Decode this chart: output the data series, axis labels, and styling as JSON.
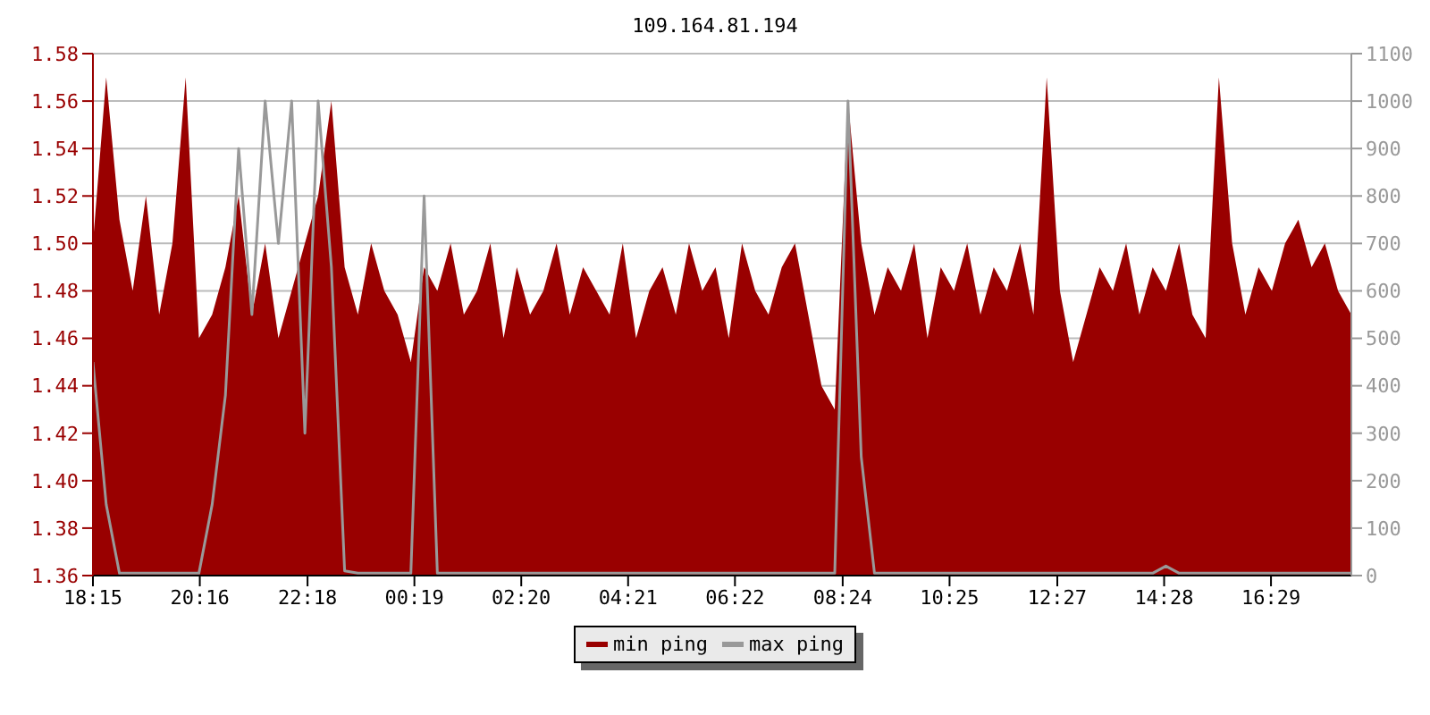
{
  "chart_data": {
    "type": "area",
    "title": "109.164.81.194",
    "x": [
      "--01-01T18:15",
      "--01-01T18:30",
      "--01-01T18:45",
      "--01-01T19:00",
      "--01-01T19:15",
      "--01-01T19:30",
      "--01-01T19:45",
      "--01-01T20:00",
      "--01-01T20:15",
      "--01-01T20:30",
      "--01-01T20:45",
      "--01-01T21:00",
      "--01-01T21:15",
      "--01-01T21:30",
      "--01-01T21:45",
      "--01-01T22:00",
      "--01-01T22:15",
      "--01-01T22:30",
      "--01-01T22:45",
      "--01-01T23:00",
      "--01-01T23:15",
      "--01-01T23:30",
      "--01-01T23:45",
      "--01-02T00:00",
      "--01-02T00:15",
      "--01-02T00:30",
      "--01-02T00:45",
      "--01-02T01:00",
      "--01-02T01:15",
      "--01-02T01:30",
      "--01-02T01:45",
      "--01-02T02:00",
      "--01-02T02:15",
      "--01-02T02:30",
      "--01-02T02:45",
      "--01-02T03:00",
      "--01-02T03:15",
      "--01-02T03:30",
      "--01-02T03:45",
      "--01-02T04:00",
      "--01-02T04:15",
      "--01-02T04:30",
      "--01-02T04:45",
      "--01-02T05:00",
      "--01-02T05:15",
      "--01-02T05:30",
      "--01-02T05:45",
      "--01-02T06:00",
      "--01-02T06:15",
      "--01-02T06:30",
      "--01-02T06:45",
      "--01-02T07:00",
      "--01-02T07:15",
      "--01-02T07:30",
      "--01-02T07:45",
      "--01-02T08:00",
      "--01-02T08:15",
      "--01-02T08:30",
      "--01-02T08:45",
      "--01-02T09:00",
      "--01-02T09:15",
      "--01-02T09:30",
      "--01-02T09:45",
      "--01-02T10:00",
      "--01-02T10:15",
      "--01-02T10:30",
      "--01-02T10:45",
      "--01-02T11:00",
      "--01-02T11:15",
      "--01-02T11:30",
      "--01-02T11:45",
      "--01-02T12:00",
      "--01-02T12:15",
      "--01-02T12:30",
      "--01-02T12:45",
      "--01-02T13:00",
      "--01-02T13:15",
      "--01-02T13:30",
      "--01-02T13:45",
      "--01-02T14:00",
      "--01-02T14:15",
      "--01-02T14:30",
      "--01-02T14:45",
      "--01-02T15:00",
      "--01-02T15:15",
      "--01-02T15:30",
      "--01-02T15:45",
      "--01-02T16:00",
      "--01-02T16:15",
      "--01-02T16:30",
      "--01-02T16:45",
      "--01-02T17:00",
      "--01-02T17:15",
      "--01-02T17:30",
      "--01-02T17:45",
      "--01-02T18:00"
    ],
    "series": [
      {
        "name": "min ping",
        "color": "#990000",
        "values": [
          1.5,
          1.57,
          1.51,
          1.48,
          1.52,
          1.47,
          1.5,
          1.57,
          1.46,
          1.47,
          1.49,
          1.52,
          1.47,
          1.5,
          1.46,
          1.48,
          1.5,
          1.52,
          1.56,
          1.49,
          1.47,
          1.5,
          1.48,
          1.47,
          1.45,
          1.49,
          1.48,
          1.5,
          1.47,
          1.48,
          1.5,
          1.46,
          1.49,
          1.47,
          1.48,
          1.5,
          1.47,
          1.49,
          1.48,
          1.47,
          1.5,
          1.46,
          1.48,
          1.49,
          1.47,
          1.5,
          1.48,
          1.49,
          1.46,
          1.5,
          1.48,
          1.47,
          1.49,
          1.5,
          1.47,
          1.44,
          1.43,
          1.56,
          1.5,
          1.47,
          1.49,
          1.48,
          1.5,
          1.46,
          1.49,
          1.48,
          1.5,
          1.47,
          1.49,
          1.48,
          1.5,
          1.47,
          1.57,
          1.48,
          1.45,
          1.47,
          1.49,
          1.48,
          1.5,
          1.47,
          1.49,
          1.48,
          1.5,
          1.47,
          1.46,
          1.57,
          1.5,
          1.47,
          1.49,
          1.48,
          1.5,
          1.51,
          1.49,
          1.5,
          1.48,
          1.47
        ]
      },
      {
        "name": "max ping",
        "color": "#999999",
        "type": "line",
        "axis": "y2",
        "values": [
          450,
          150,
          5,
          5,
          5,
          5,
          5,
          5,
          5,
          150,
          380,
          900,
          550,
          1000,
          700,
          1000,
          300,
          1000,
          650,
          10,
          5,
          5,
          5,
          5,
          5,
          800,
          5,
          5,
          5,
          5,
          5,
          5,
          5,
          5,
          5,
          5,
          5,
          5,
          5,
          5,
          5,
          5,
          5,
          5,
          5,
          5,
          5,
          5,
          5,
          5,
          5,
          5,
          5,
          5,
          5,
          5,
          5,
          1000,
          250,
          5,
          5,
          5,
          5,
          5,
          5,
          5,
          5,
          5,
          5,
          5,
          5,
          5,
          5,
          5,
          5,
          5,
          5,
          5,
          5,
          5,
          5,
          20,
          5,
          5,
          5,
          5,
          5,
          5,
          5,
          5,
          5,
          5,
          5,
          5,
          5,
          5
        ]
      }
    ],
    "xlim": [
      "--01-01T18:15",
      "--01-02T18:00"
    ],
    "xticks": [
      {
        "value": "--01-01T18:15",
        "label": "18:15"
      },
      {
        "value": "--01-01T20:16",
        "label": "20:16"
      },
      {
        "value": "--01-01T22:18",
        "label": "22:18"
      },
      {
        "value": "--01-02T00:19",
        "label": "00:19"
      },
      {
        "value": "--01-02T02:20",
        "label": "02:20"
      },
      {
        "value": "--01-02T04:21",
        "label": "04:21"
      },
      {
        "value": "--01-02T06:22",
        "label": "06:22"
      },
      {
        "value": "--01-02T08:24",
        "label": "08:24"
      },
      {
        "value": "--01-02T10:25",
        "label": "10:25"
      },
      {
        "value": "--01-02T12:27",
        "label": "12:27"
      },
      {
        "value": "--01-02T14:28",
        "label": "14:28"
      },
      {
        "value": "--01-02T16:29",
        "label": "16:29"
      }
    ],
    "ylim": [
      1.36,
      1.58
    ],
    "yticks": [
      1.36,
      1.38,
      {
        "value": 1.4,
        "label": "1.40"
      },
      1.42,
      1.44,
      1.46,
      1.48,
      {
        "value": 1.5,
        "label": "1.50"
      },
      1.52,
      1.54,
      1.56,
      1.58
    ],
    "y2lim": [
      0,
      1100
    ],
    "y2ticks": [
      0,
      100,
      200,
      300,
      400,
      500,
      600,
      700,
      800,
      900,
      1000,
      1100
    ],
    "grid": "y",
    "legend": "bottom"
  }
}
